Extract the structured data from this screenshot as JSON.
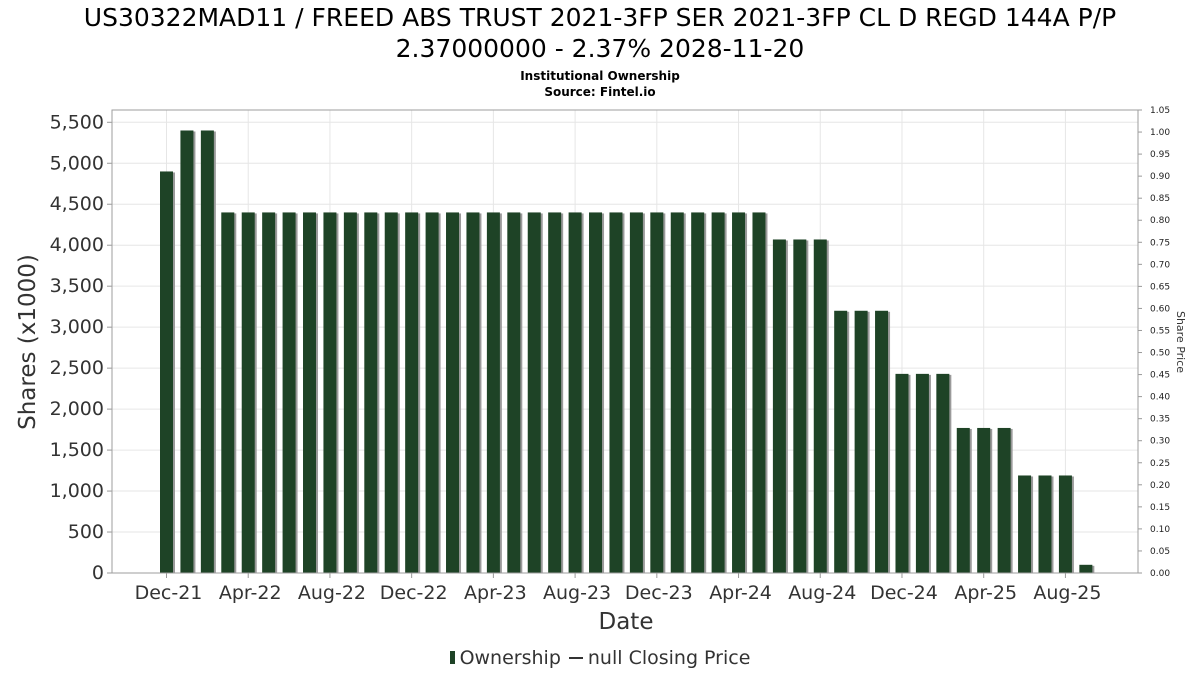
{
  "header": {
    "title_line1": "US30322MAD11 / FREED ABS TRUST 2021-3FP SER 2021-3FP CL D REGD 144A P/P",
    "title_line2": "2.37000000 - 2.37% 2028-11-20",
    "subtitle_line1": "Institutional Ownership",
    "subtitle_line2": "Source: Fintel.io"
  },
  "legend": {
    "ownership_label": "Ownership",
    "price_label": "null Closing Price"
  },
  "colors": {
    "bar": "#1e4326",
    "bar_shadow": "#9a9a9a",
    "grid": "#e6e6e6"
  },
  "chart_data": {
    "type": "bar",
    "xlabel": "Date",
    "ylabel": "Shares (x1000)",
    "y2label": "Share Price",
    "ylim": [
      0,
      5650
    ],
    "y2lim": [
      0,
      1.05
    ],
    "yticks": [
      "0",
      "500",
      "1,000",
      "1,500",
      "2,000",
      "2,500",
      "3,000",
      "3,500",
      "4,000",
      "4,500",
      "5,000",
      "5,500"
    ],
    "ytick_values": [
      0,
      500,
      1000,
      1500,
      2000,
      2500,
      3000,
      3500,
      4000,
      4500,
      5000,
      5500
    ],
    "y2ticks": [
      "0.00",
      "0.05",
      "0.10",
      "0.15",
      "0.20",
      "0.25",
      "0.30",
      "0.35",
      "0.40",
      "0.45",
      "0.50",
      "0.55",
      "0.60",
      "0.65",
      "0.70",
      "0.75",
      "0.80",
      "0.85",
      "0.90",
      "0.95",
      "1.00",
      "1.05"
    ],
    "xticks": [
      "Dec-21",
      "Apr-22",
      "Aug-22",
      "Dec-22",
      "Apr-23",
      "Aug-23",
      "Dec-23",
      "Apr-24",
      "Aug-24",
      "Dec-24",
      "Apr-25",
      "Aug-25"
    ],
    "grid": true,
    "legend_position": "bottom",
    "series": [
      {
        "name": "Ownership",
        "values": [
          4900,
          5400,
          5400,
          4400,
          4400,
          4400,
          4400,
          4400,
          4400,
          4400,
          4400,
          4400,
          4400,
          4400,
          4400,
          4400,
          4400,
          4400,
          4400,
          4400,
          4400,
          4400,
          4400,
          4400,
          4400,
          4400,
          4400,
          4400,
          4400,
          4400,
          4070,
          4070,
          4070,
          3200,
          3200,
          3200,
          2430,
          2430,
          2430,
          1770,
          1770,
          1770,
          1190,
          1190,
          1190,
          100
        ]
      }
    ]
  }
}
